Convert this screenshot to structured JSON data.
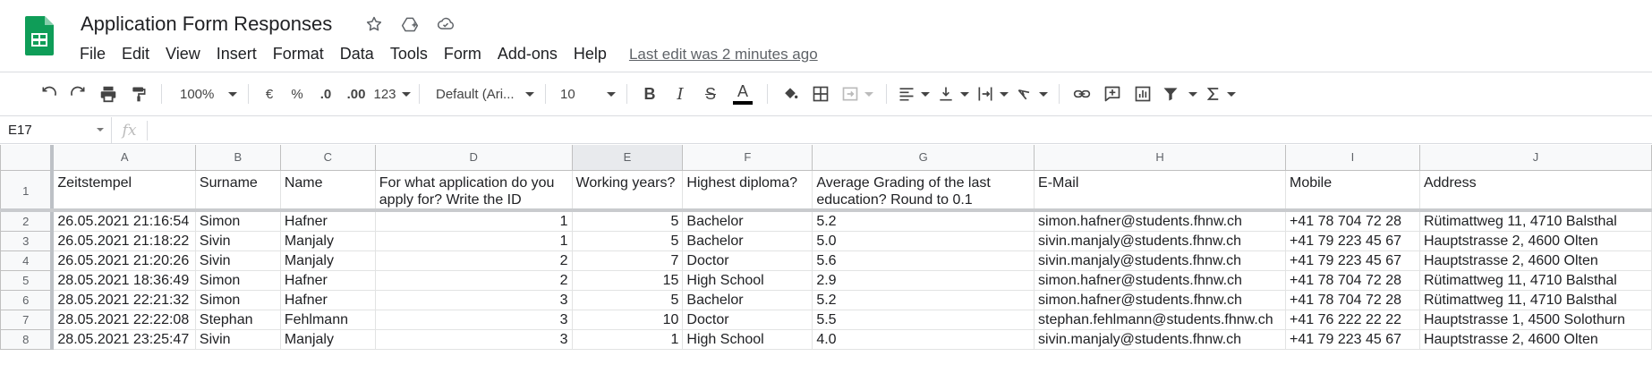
{
  "app": {
    "title": "Application Form Responses",
    "last_edit": "Last edit was 2 minutes ago",
    "brand_color": "#0f9d58"
  },
  "menu": [
    "File",
    "Edit",
    "View",
    "Insert",
    "Format",
    "Data",
    "Tools",
    "Form",
    "Add-ons",
    "Help"
  ],
  "toolbar": {
    "zoom": "100%",
    "currency": "€",
    "percent": "%",
    "decrease_decimal": ".0",
    "increase_decimal": ".00",
    "more_formats": "123",
    "font": "Default (Ari...",
    "font_size": "10",
    "bold": "B",
    "italic": "I",
    "strike": "S",
    "text_color": "A"
  },
  "formula_bar": {
    "cell_ref": "E17",
    "fx": "fx",
    "value": ""
  },
  "columns": [
    "A",
    "B",
    "C",
    "D",
    "E",
    "F",
    "G",
    "H",
    "I",
    "J"
  ],
  "selected_column": "E",
  "header_row": {
    "row_number": "1",
    "cells": [
      "Zeitstempel",
      "Surname",
      "Name",
      "For what application do you apply for? Write the ID",
      "Working years?",
      "Highest diploma?",
      "Average Grading of the last education? Round to 0.1",
      "E-Mail",
      "Mobile",
      "Address"
    ]
  },
  "rows": [
    {
      "n": "2",
      "cells": [
        "26.05.2021 21:16:54",
        "Simon",
        "Hafner",
        "1",
        "5",
        "Bachelor",
        "5.2",
        "simon.hafner@students.fhnw.ch",
        "+41 78 704 72 28",
        "Rütimattweg 11, 4710 Balsthal"
      ]
    },
    {
      "n": "3",
      "cells": [
        "26.05.2021 21:18:22",
        "Sivin",
        "Manjaly",
        "1",
        "5",
        "Bachelor",
        "5.0",
        "sivin.manjaly@students.fhnw.ch",
        "+41 79 223 45 67",
        "Hauptstrasse 2, 4600 Olten"
      ]
    },
    {
      "n": "4",
      "cells": [
        "26.05.2021 21:20:26",
        "Sivin",
        "Manjaly",
        "2",
        "7",
        "Doctor",
        "5.6",
        "sivin.manjaly@students.fhnw.ch",
        "+41 79 223 45 67",
        "Hauptstrasse 2, 4600 Olten"
      ]
    },
    {
      "n": "5",
      "cells": [
        "28.05.2021 18:36:49",
        "Simon",
        "Hafner",
        "2",
        "15",
        "High School",
        "2.9",
        "simon.hafner@students.fhnw.ch",
        "+41 78 704 72 28",
        "Rütimattweg 11, 4710 Balsthal"
      ]
    },
    {
      "n": "6",
      "cells": [
        "28.05.2021 22:21:32",
        "Simon",
        "Hafner",
        "3",
        "5",
        "Bachelor",
        "5.2",
        "simon.hafner@students.fhnw.ch",
        "+41 78 704 72 28",
        "Rütimattweg 11, 4710 Balsthal"
      ]
    },
    {
      "n": "7",
      "cells": [
        "28.05.2021 22:22:08",
        "Stephan",
        "Fehlmann",
        "3",
        "10",
        "Doctor",
        "5.5",
        "stephan.fehlmann@students.fhnw.ch",
        "+41 76 222 22 22",
        "Hauptstrasse 1, 4500 Solothurn"
      ]
    },
    {
      "n": "8",
      "cells": [
        "28.05.2021 23:25:47",
        "Sivin",
        "Manjaly",
        "3",
        "1",
        "High School",
        "4.0",
        "sivin.manjaly@students.fhnw.ch",
        "+41 79 223 45 67",
        "Hauptstrasse 2, 4600 Olten"
      ]
    }
  ]
}
